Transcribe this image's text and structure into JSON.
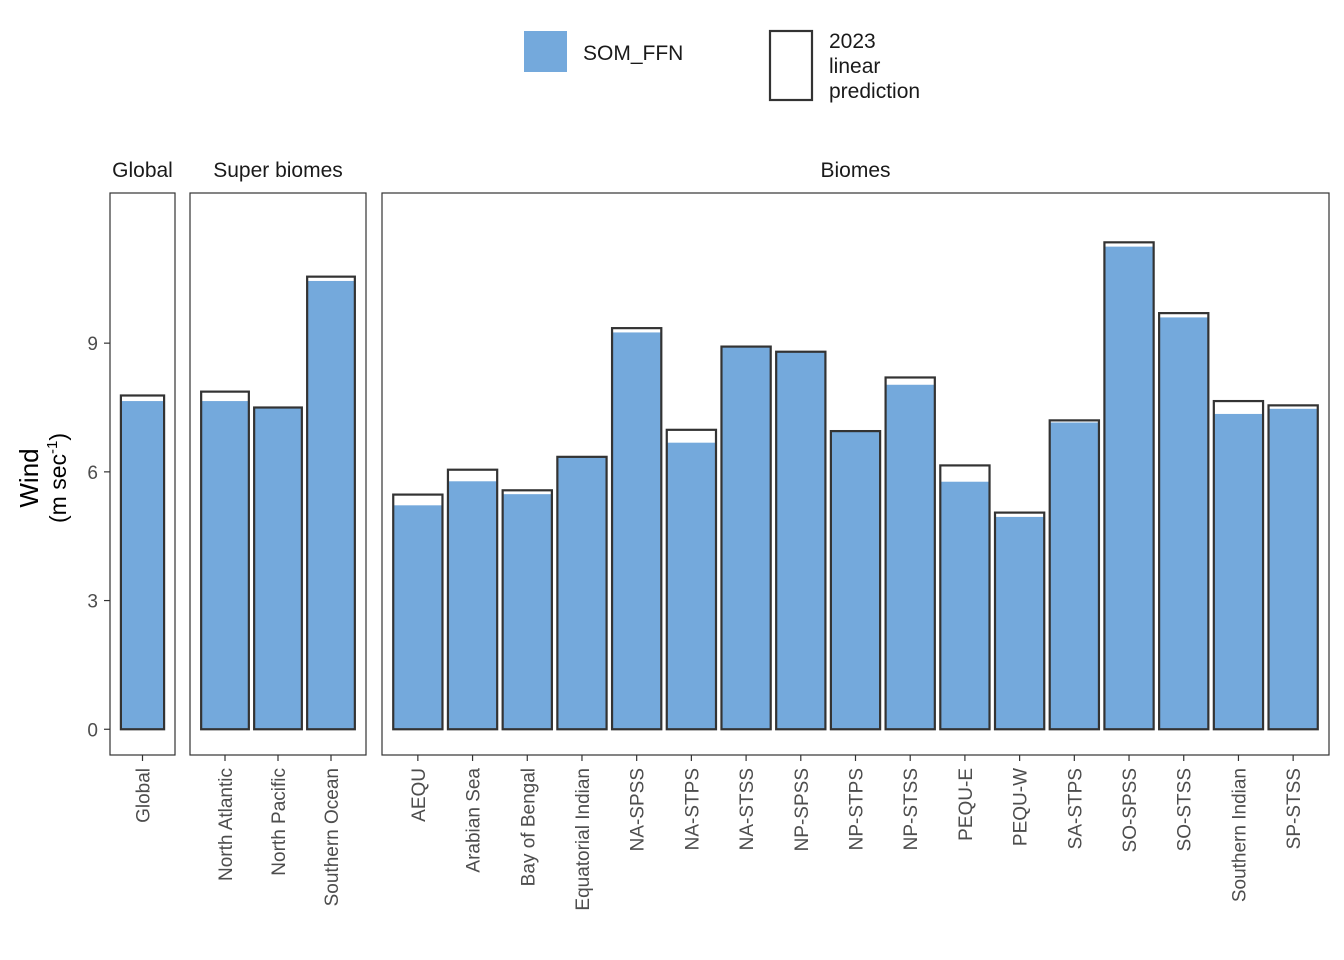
{
  "chart_data": {
    "type": "bar",
    "ylabel_main": "Wind",
    "ylabel_unit_prefix": "(m sec",
    "ylabel_unit_sup": "-1",
    "ylabel_unit_suffix": ")",
    "yticks": [
      0,
      3,
      6,
      9
    ],
    "ylim": [
      -0.6,
      12.5
    ],
    "colors": {
      "fill": "#74A9DC",
      "outline": "#333333",
      "strip_text": "#1a1a1a",
      "tick_text": "#4d4d4d"
    },
    "legend": {
      "fill_label": "SOM_FFN",
      "outline_label_lines": [
        "2023",
        "linear",
        "prediction"
      ]
    },
    "panels": [
      {
        "title": "Global",
        "categories": [
          "Global"
        ],
        "som_ffn": [
          7.65
        ],
        "linear_prediction": [
          7.78
        ]
      },
      {
        "title": "Super biomes",
        "categories": [
          "North Atlantic",
          "North Pacific",
          "Southern Ocean"
        ],
        "som_ffn": [
          7.65,
          7.5,
          10.45
        ],
        "linear_prediction": [
          7.87,
          7.5,
          10.55
        ]
      },
      {
        "title": "Biomes",
        "categories": [
          "AEQU",
          "Arabian Sea",
          "Bay of Bengal",
          "Equatorial Indian",
          "NA-SPSS",
          "NA-STPS",
          "NA-STSS",
          "NP-SPSS",
          "NP-STPS",
          "NP-STSS",
          "PEQU-E",
          "PEQU-W",
          "SA-STPS",
          "SO-SPSS",
          "SO-STSS",
          "Southern Indian",
          "SP-STSS"
        ],
        "som_ffn": [
          5.22,
          5.78,
          5.48,
          6.35,
          9.25,
          6.68,
          8.9,
          8.8,
          6.95,
          8.03,
          5.77,
          4.95,
          7.15,
          11.25,
          9.6,
          7.35,
          7.47
        ],
        "linear_prediction": [
          5.47,
          6.05,
          5.57,
          6.35,
          9.35,
          6.98,
          8.92,
          8.8,
          6.95,
          8.2,
          6.15,
          5.05,
          7.2,
          11.35,
          9.7,
          7.65,
          7.55
        ]
      }
    ]
  }
}
